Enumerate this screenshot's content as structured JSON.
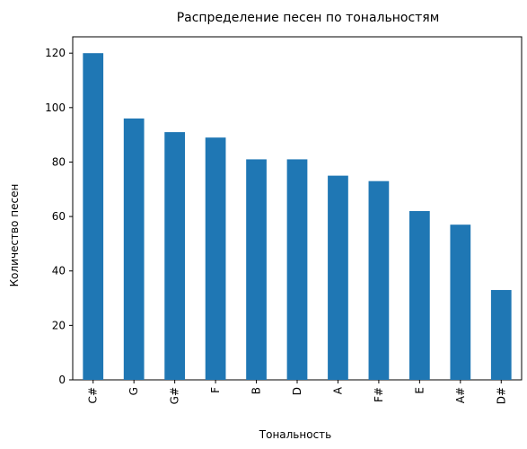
{
  "chart_data": {
    "type": "bar",
    "title": "Распределение песен по тональностям",
    "xlabel": "Тональность",
    "ylabel": "Количество песен",
    "categories": [
      "C#",
      "G",
      "G#",
      "F",
      "B",
      "D",
      "A",
      "F#",
      "E",
      "A#",
      "D#"
    ],
    "values": [
      120,
      96,
      91,
      89,
      81,
      81,
      75,
      73,
      62,
      57,
      33
    ],
    "ylim": [
      0,
      126
    ],
    "yticks": [
      0,
      20,
      40,
      60,
      80,
      100,
      120
    ],
    "grid": false,
    "bar_color": "#1f77b4"
  }
}
